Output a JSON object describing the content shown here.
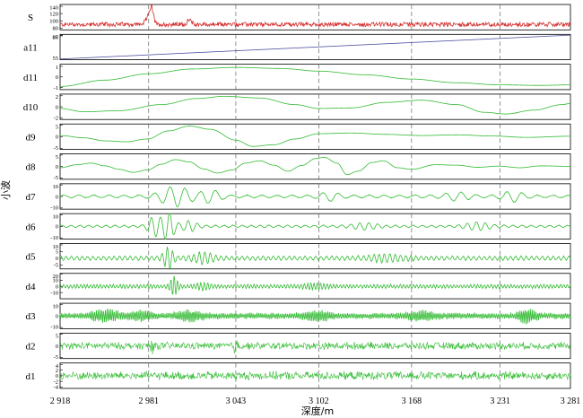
{
  "chart_data": {
    "type": "line",
    "title": "",
    "xlabel": "深度/m",
    "ylabel": "小波",
    "xlim": [
      2918,
      3281
    ],
    "x_ticks": [
      2918,
      2981,
      3043,
      3102,
      3168,
      3231,
      3281
    ],
    "x_tick_labels": [
      "2 918",
      "2 981",
      "3 043",
      "3 102",
      "3 168",
      "3 231",
      "3 281"
    ],
    "grid": "vertical dashed at x ticks",
    "colors": {
      "signal": "#d42a2a",
      "approx": "#5050a0",
      "detail": "#33bb33"
    },
    "panels": [
      {
        "name": "S",
        "ylim": [
          75,
          145
        ],
        "yticks": [
          "140",
          "120",
          "100",
          "80"
        ],
        "color": "#d42a2a",
        "shape": {
          "kind": "signal",
          "base": 90,
          "noise": 6,
          "spikes": [
            {
              "x": 2983,
              "amp": 45,
              "w": 2
            },
            {
              "x": 2981,
              "amp": 20,
              "w": 3
            },
            {
              "x": 3010,
              "amp": 15,
              "w": 2
            }
          ]
        }
      },
      {
        "name": "a11",
        "ylim": [
          54,
          88
        ],
        "yticks": [
          "87",
          "86",
          "55"
        ],
        "color": "#5050a0",
        "shape": {
          "kind": "ramp",
          "from": 55,
          "to": 87
        }
      },
      {
        "name": "d11",
        "ylim": [
          -1.2,
          1.2
        ],
        "yticks": [
          "1",
          "0",
          "-1"
        ],
        "color": "#33bb33",
        "points": [
          [
            2918,
            -0.9
          ],
          [
            2950,
            -0.3
          ],
          [
            2981,
            0.3
          ],
          [
            3012,
            0.75
          ],
          [
            3043,
            0.9
          ],
          [
            3075,
            0.8
          ],
          [
            3102,
            0.55
          ],
          [
            3135,
            0.2
          ],
          [
            3168,
            -0.2
          ],
          [
            3200,
            -0.55
          ],
          [
            3231,
            -0.75
          ],
          [
            3260,
            -0.8
          ],
          [
            3281,
            -0.75
          ]
        ]
      },
      {
        "name": "d10",
        "ylim": [
          -2.3,
          2.3
        ],
        "yticks": [
          "2",
          "0",
          "-2"
        ],
        "color": "#33bb33",
        "points": [
          [
            2918,
            -0.3
          ],
          [
            2935,
            -0.9
          ],
          [
            2960,
            -0.7
          ],
          [
            2990,
            0.4
          ],
          [
            3015,
            1.5
          ],
          [
            3035,
            1.9
          ],
          [
            3060,
            1.6
          ],
          [
            3085,
            0.4
          ],
          [
            3102,
            -0.3
          ],
          [
            3125,
            -0.2
          ],
          [
            3150,
            0.8
          ],
          [
            3175,
            1.2
          ],
          [
            3200,
            0.4
          ],
          [
            3220,
            -1.0
          ],
          [
            3235,
            -1.3
          ],
          [
            3255,
            -0.6
          ],
          [
            3275,
            0.4
          ],
          [
            3281,
            0.6
          ]
        ]
      },
      {
        "name": "d9",
        "ylim": [
          -5.5,
          5.5
        ],
        "yticks": [
          "5",
          "0",
          "-5"
        ],
        "color": "#33bb33",
        "points": [
          [
            2918,
            0.5
          ],
          [
            2935,
            -0.5
          ],
          [
            2950,
            -1.8
          ],
          [
            2965,
            -2.2
          ],
          [
            2980,
            -1.0
          ],
          [
            2995,
            2.5
          ],
          [
            3010,
            4.6
          ],
          [
            3025,
            3.2
          ],
          [
            3043,
            -1.5
          ],
          [
            3055,
            -4.2
          ],
          [
            3070,
            -3.5
          ],
          [
            3085,
            -1.0
          ],
          [
            3102,
            1.3
          ],
          [
            3125,
            1.6
          ],
          [
            3150,
            1.0
          ],
          [
            3175,
            0.5
          ],
          [
            3200,
            0.8
          ],
          [
            3225,
            0.3
          ],
          [
            3250,
            -0.3
          ],
          [
            3281,
            0.2
          ]
        ]
      },
      {
        "name": "d8",
        "ylim": [
          -5.5,
          5.5
        ],
        "yticks": [
          "5",
          "0",
          "-5"
        ],
        "color": "#33bb33",
        "points": [
          [
            2918,
            -0.5
          ],
          [
            2930,
            0.8
          ],
          [
            2940,
            1.5
          ],
          [
            2950,
            0.3
          ],
          [
            2960,
            -1.2
          ],
          [
            2970,
            -2.5
          ],
          [
            2980,
            -1.5
          ],
          [
            2990,
            1.0
          ],
          [
            3000,
            3.0
          ],
          [
            3010,
            2.0
          ],
          [
            3020,
            -1.0
          ],
          [
            3030,
            -2.8
          ],
          [
            3040,
            -1.5
          ],
          [
            3050,
            1.5
          ],
          [
            3060,
            2.5
          ],
          [
            3070,
            0.6
          ],
          [
            3080,
            -2.0
          ],
          [
            3090,
            0.5
          ],
          [
            3100,
            3.5
          ],
          [
            3106,
            4.0
          ],
          [
            3115,
            1.5
          ],
          [
            3122,
            -3.5
          ],
          [
            3130,
            -2.0
          ],
          [
            3140,
            1.8
          ],
          [
            3148,
            2.5
          ],
          [
            3158,
            -0.5
          ],
          [
            3168,
            -1.2
          ],
          [
            3185,
            0.8
          ],
          [
            3200,
            0.6
          ],
          [
            3215,
            -0.3
          ],
          [
            3230,
            0.2
          ],
          [
            3245,
            -0.5
          ],
          [
            3260,
            0.3
          ],
          [
            3281,
            0.1
          ]
        ]
      },
      {
        "name": "d7",
        "ylim": [
          -11,
          11
        ],
        "yticks": [
          "10",
          "0",
          "-10"
        ],
        "color": "#33bb33",
        "shape": {
          "kind": "osc",
          "period": 11,
          "base": 1.2,
          "bumps": [
            {
              "x": 3000,
              "amp": 8,
              "w": 12
            },
            {
              "x": 3025,
              "amp": 5,
              "w": 8
            },
            {
              "x": 3110,
              "amp": 3,
              "w": 8
            },
            {
              "x": 3200,
              "amp": 3,
              "w": 10
            },
            {
              "x": 3240,
              "amp": 4,
              "w": 8
            }
          ]
        }
      },
      {
        "name": "d6",
        "ylim": [
          -11,
          11
        ],
        "yticks": [
          "10",
          "0",
          "-10"
        ],
        "color": "#33bb33",
        "shape": {
          "kind": "osc",
          "period": 6.5,
          "base": 1.0,
          "bumps": [
            {
              "x": 2985,
              "amp": 8,
              "w": 5
            },
            {
              "x": 2995,
              "amp": 12,
              "w": 5
            },
            {
              "x": 3010,
              "amp": 4,
              "w": 6
            },
            {
              "x": 3135,
              "amp": 2.5,
              "w": 10
            },
            {
              "x": 3215,
              "amp": 3,
              "w": 10
            }
          ]
        }
      },
      {
        "name": "d5",
        "ylim": [
          -8,
          11
        ],
        "yticks": [
          "10",
          "5",
          "0",
          "-5"
        ],
        "color": "#33bb33",
        "shape": {
          "kind": "osc",
          "period": 3.8,
          "base": 1.5,
          "bumps": [
            {
              "x": 2995,
              "amp": 7,
              "w": 4
            },
            {
              "x": 3020,
              "amp": 3.5,
              "w": 8
            },
            {
              "x": 3150,
              "amp": 2,
              "w": 15
            }
          ]
        }
      },
      {
        "name": "d4",
        "ylim": [
          -20,
          21
        ],
        "yticks": [
          "20",
          "10",
          "0",
          "-10"
        ],
        "color": "#33bb33",
        "shape": {
          "kind": "osc",
          "period": 2.4,
          "base": 3.0,
          "bumps": [
            {
              "x": 2999,
              "amp": 14,
              "w": 3
            },
            {
              "x": 3020,
              "amp": 4,
              "w": 6
            },
            {
              "x": 3100,
              "amp": 3,
              "w": 10
            }
          ]
        }
      },
      {
        "name": "d3",
        "ylim": [
          -11,
          11
        ],
        "yticks": [
          "10",
          "0",
          "-10"
        ],
        "color": "#33bb33",
        "shape": {
          "kind": "osc",
          "period": 1.3,
          "base": 2.5,
          "bumps": [
            {
              "x": 2950,
              "amp": 4,
              "w": 10
            },
            {
              "x": 2975,
              "amp": 3,
              "w": 8
            },
            {
              "x": 3010,
              "amp": 3,
              "w": 10
            },
            {
              "x": 3100,
              "amp": 3,
              "w": 10
            },
            {
              "x": 3175,
              "amp": 3,
              "w": 10
            },
            {
              "x": 3250,
              "amp": 5,
              "w": 6
            }
          ]
        }
      },
      {
        "name": "d2",
        "ylim": [
          -5.5,
          5.5
        ],
        "yticks": [
          "5",
          "0",
          "-5"
        ],
        "color": "#33bb33",
        "shape": {
          "kind": "noise",
          "amp": 1.8,
          "bumps": [
            {
              "x": 2983,
              "amp": 3,
              "w": 2
            },
            {
              "x": 3043,
              "amp": 3,
              "w": 2
            }
          ]
        }
      },
      {
        "name": "d1",
        "ylim": [
          -4.5,
          4.5
        ],
        "yticks": [
          "4",
          "2",
          "0",
          "-2",
          "-4"
        ],
        "color": "#33bb33",
        "shape": {
          "kind": "noise",
          "amp": 1.7,
          "bumps": []
        }
      }
    ]
  }
}
